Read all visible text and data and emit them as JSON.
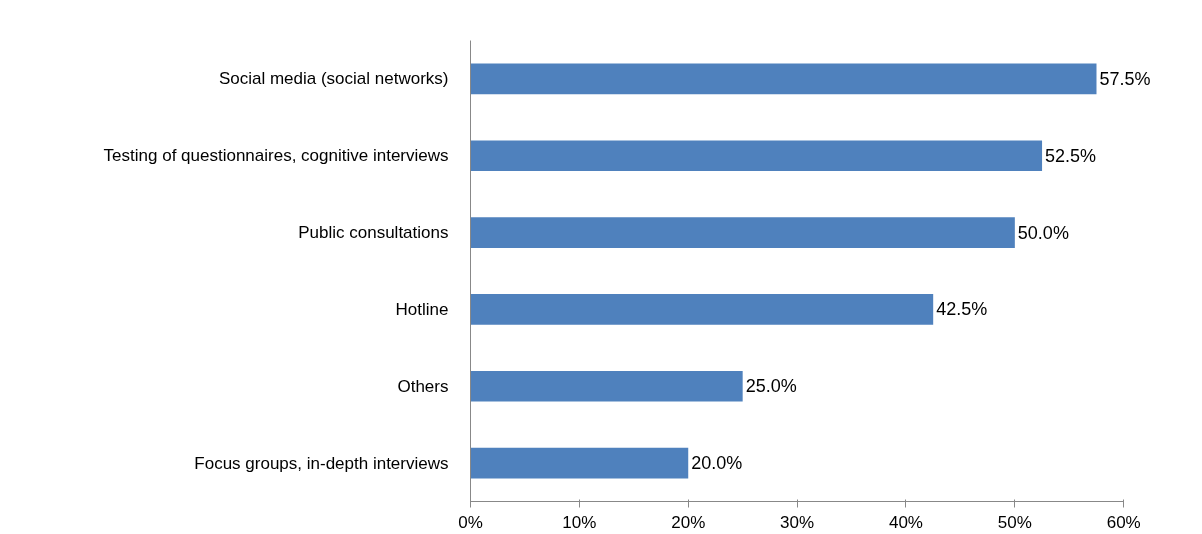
{
  "chart_data": {
    "type": "bar",
    "orientation": "horizontal",
    "categories": [
      "Social media (social networks)",
      "Testing of questionnaires, cognitive interviews",
      "Public consultations",
      "Hotline",
      "Others",
      "Focus groups, in-depth interviews"
    ],
    "values": [
      57.5,
      52.5,
      50.0,
      42.5,
      25.0,
      20.0
    ],
    "value_labels": [
      "57.5%",
      "52.5%",
      "50.0%",
      "42.5%",
      "25.0%",
      "20.0%"
    ],
    "color": "#4f81bd",
    "xlim": [
      0,
      60
    ],
    "xticks": [
      {
        "value": 0,
        "label": "0%"
      },
      {
        "value": 10,
        "label": "10%"
      },
      {
        "value": 20,
        "label": "20%"
      },
      {
        "value": 30,
        "label": "30%"
      },
      {
        "value": 40,
        "label": "40%"
      },
      {
        "value": 50,
        "label": "50%"
      },
      {
        "value": 60,
        "label": "60%"
      }
    ],
    "grid": false
  }
}
